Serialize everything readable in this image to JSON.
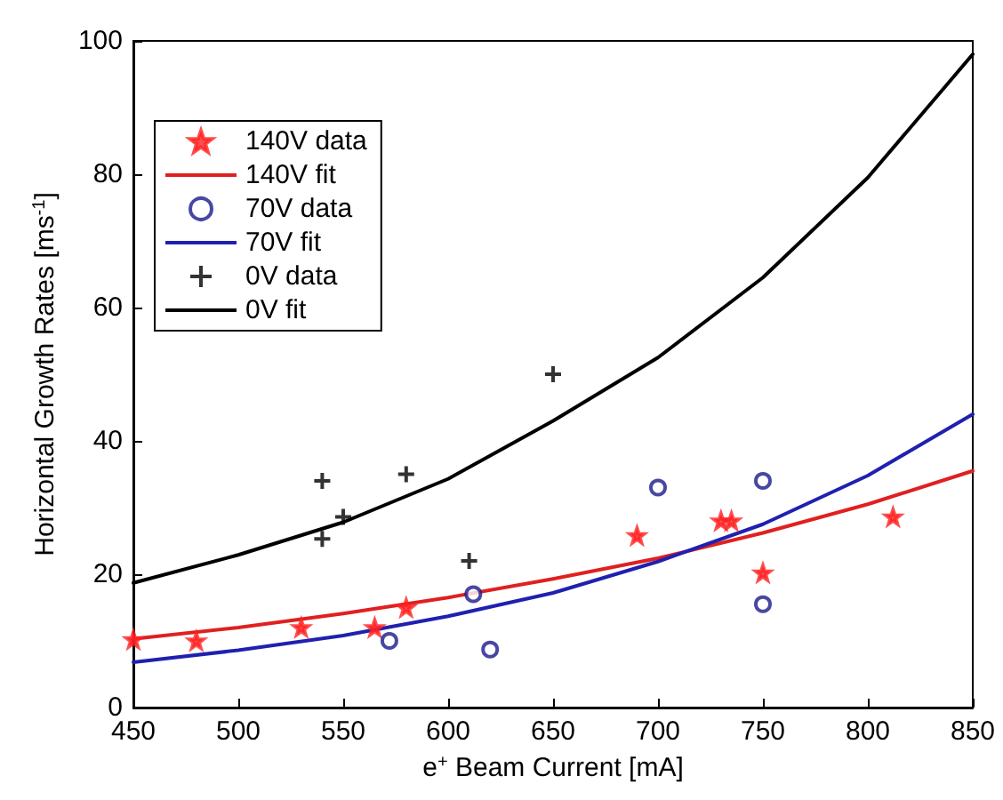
{
  "chart_data": {
    "type": "scatter",
    "xlabel": "e$^{+}$ Beam Current [mA]",
    "ylabel": "Horizontal Growth Rates [ms$^{-1}$]",
    "xlim": [
      450,
      850
    ],
    "xticks": [
      450,
      500,
      550,
      600,
      650,
      700,
      750,
      800,
      850
    ],
    "ylim": [
      0,
      100
    ],
    "yticks": [
      0,
      20,
      40,
      60,
      80,
      100
    ],
    "grid": false,
    "legend": "top left",
    "series": [
      {
        "name": "140V data",
        "marker": "star",
        "color": "#ff2020",
        "x": [
          450,
          480,
          530,
          565,
          580,
          690,
          730,
          735,
          750,
          812
        ],
        "values": [
          10.2,
          10,
          12,
          12,
          15,
          25.8,
          28,
          28,
          20.2,
          28.6
        ]
      },
      {
        "name": "140V fit",
        "type": "line",
        "marker": "none",
        "color": "#e02020",
        "x": [
          450,
          500,
          550,
          600,
          650,
          700,
          750,
          800,
          850
        ],
        "values": [
          10.3,
          12,
          14.1,
          16.5,
          19.3,
          22.4,
          26.2,
          30.5,
          35.5
        ]
      },
      {
        "name": "70V data",
        "marker": "circle",
        "color": "#1a1a8c",
        "x": [
          572,
          612,
          620,
          700,
          750,
          750
        ],
        "values": [
          10,
          17,
          8.7,
          33,
          34,
          15.5
        ]
      },
      {
        "name": "70V fit",
        "type": "line",
        "marker": "none",
        "color": "#2020b0",
        "x": [
          450,
          500,
          550,
          600,
          650,
          700,
          750,
          800,
          850
        ],
        "values": [
          6.8,
          8.6,
          10.8,
          13.7,
          17.2,
          21.9,
          27.5,
          34.8,
          44
        ]
      },
      {
        "name": "0V data",
        "marker": "cross",
        "color": "#000000",
        "x": [
          540,
          540,
          550,
          580,
          610,
          650
        ],
        "values": [
          34,
          25.3,
          28.6,
          35,
          22,
          50
        ]
      },
      {
        "name": "0V fit",
        "type": "line",
        "marker": "none",
        "color": "#000000",
        "x": [
          450,
          500,
          550,
          600,
          650,
          700,
          750,
          800,
          850
        ],
        "values": [
          18.7,
          22.9,
          27.8,
          34.3,
          43,
          52.5,
          64.5,
          79.5,
          98
        ]
      }
    ]
  }
}
